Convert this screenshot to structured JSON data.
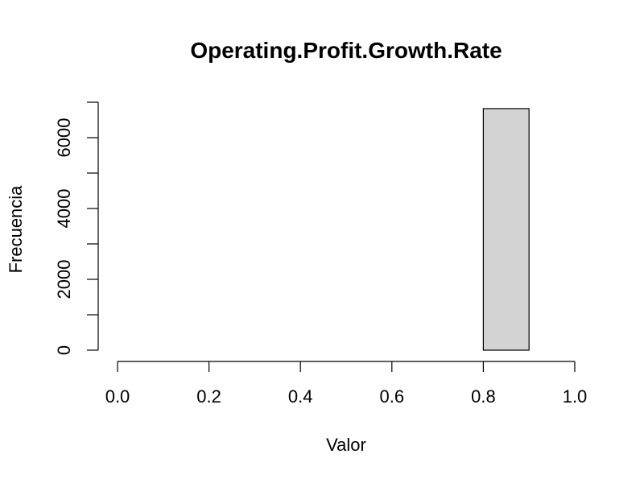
{
  "chart_data": {
    "type": "bar",
    "title": "Operating.Profit.Growth.Rate",
    "xlabel": "Valor",
    "ylabel": "Frecuencia",
    "bins": [
      {
        "start": 0.0,
        "end": 0.1,
        "count": 0
      },
      {
        "start": 0.1,
        "end": 0.2,
        "count": 0
      },
      {
        "start": 0.2,
        "end": 0.3,
        "count": 0
      },
      {
        "start": 0.3,
        "end": 0.4,
        "count": 0
      },
      {
        "start": 0.4,
        "end": 0.5,
        "count": 0
      },
      {
        "start": 0.5,
        "end": 0.6,
        "count": 0
      },
      {
        "start": 0.6,
        "end": 0.7,
        "count": 0
      },
      {
        "start": 0.7,
        "end": 0.8,
        "count": 0
      },
      {
        "start": 0.8,
        "end": 0.9,
        "count": 6820
      },
      {
        "start": 0.9,
        "end": 1.0,
        "count": 0
      }
    ],
    "xlim": [
      0,
      1
    ],
    "ylim": [
      0,
      7000
    ],
    "x_ticks": [
      0.0,
      0.2,
      0.4,
      0.6,
      0.8,
      1.0
    ],
    "x_tick_labels": [
      "0.0",
      "0.2",
      "0.4",
      "0.6",
      "0.8",
      "1.0"
    ],
    "y_ticks": [
      0,
      2000,
      4000,
      6000
    ],
    "y_tick_labels": [
      "0",
      "2000",
      "4000",
      "6000"
    ],
    "y_minor_ticks": [
      1000,
      3000,
      5000,
      7000
    ],
    "bar_fill": "#d3d3d3",
    "bar_stroke": "#000000",
    "grid": false
  }
}
